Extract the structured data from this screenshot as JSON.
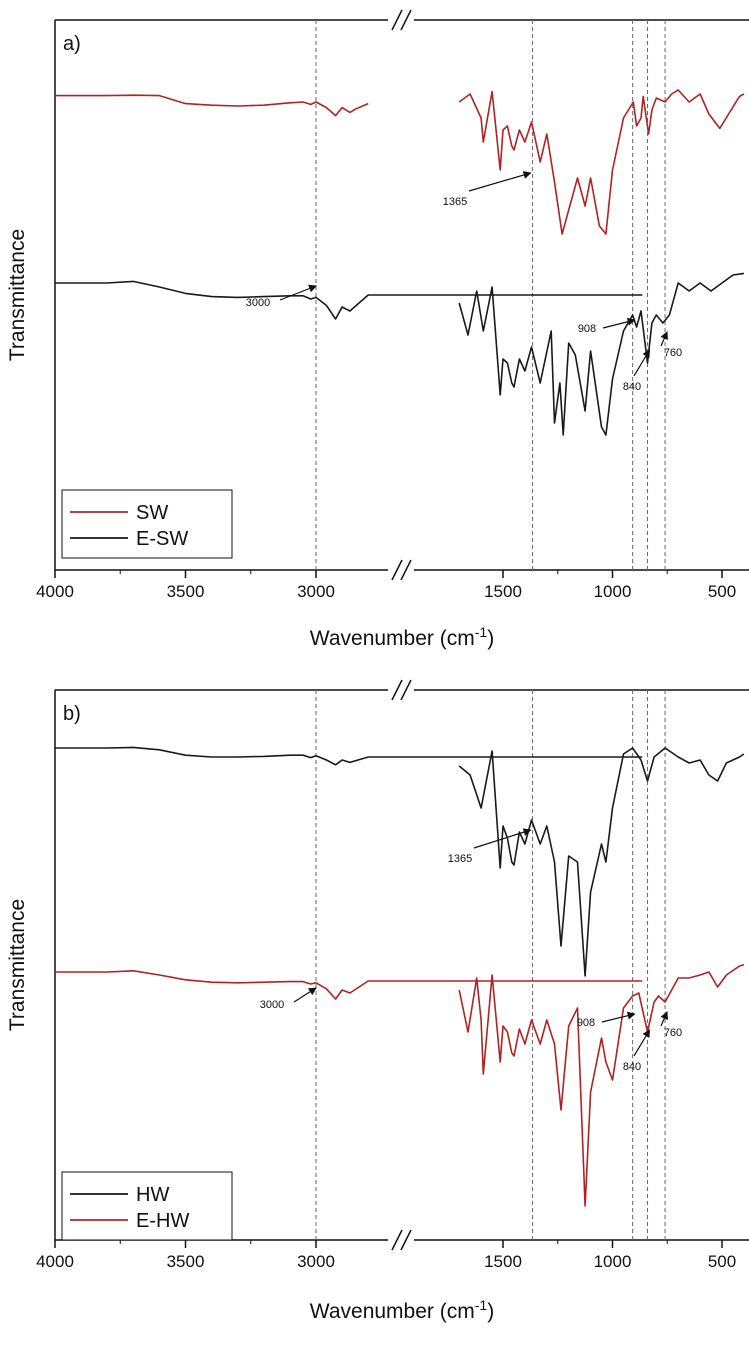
{
  "chart_data": [
    {
      "type": "line",
      "panel_label": "a)",
      "xlabel": "Wavenumber (cm",
      "xlabel_sup": "-1",
      "xlabel_close": ")",
      "ylabel": "Transmittance",
      "x_ticks": [
        "4000",
        "3500",
        "3000",
        "1500",
        "1000",
        "500"
      ],
      "x_break": [
        1750,
        1700
      ],
      "xlim": [
        4000,
        400
      ],
      "grid": false,
      "legend_position": "bottom-left",
      "reference_lines": [
        3000,
        1365,
        908,
        840,
        760
      ],
      "annotations": [
        {
          "label": "1365",
          "x": 1365
        },
        {
          "label": "3000",
          "x": 3000
        },
        {
          "label": "908",
          "x": 908
        },
        {
          "label": "840",
          "x": 840
        },
        {
          "label": "760",
          "x": 760
        }
      ],
      "series": [
        {
          "name": "SW",
          "color": "#b22222",
          "points": [
            [
              4000,
              0.07
            ],
            [
              3800,
              0.07
            ],
            [
              3700,
              0.065
            ],
            [
              3600,
              0.07
            ],
            [
              3550,
              0.12
            ],
            [
              3500,
              0.17
            ],
            [
              3400,
              0.19
            ],
            [
              3300,
              0.2
            ],
            [
              3200,
              0.19
            ],
            [
              3100,
              0.16
            ],
            [
              3050,
              0.15
            ],
            [
              3020,
              0.18
            ],
            [
              3000,
              0.15
            ],
            [
              2960,
              0.22
            ],
            [
              2925,
              0.32
            ],
            [
              2900,
              0.22
            ],
            [
              2870,
              0.28
            ],
            [
              2850,
              0.24
            ],
            [
              2800,
              0.17
            ],
            [
              1700,
              0.15
            ],
            [
              1650,
              0.05
            ],
            [
              1600,
              0.35
            ],
            [
              1590,
              0.65
            ],
            [
              1550,
              0.02
            ],
            [
              1513,
              1.0
            ],
            [
              1500,
              0.5
            ],
            [
              1480,
              0.45
            ],
            [
              1460,
              0.7
            ],
            [
              1450,
              0.75
            ],
            [
              1425,
              0.5
            ],
            [
              1400,
              0.65
            ],
            [
              1370,
              0.4
            ],
            [
              1330,
              0.9
            ],
            [
              1300,
              0.55
            ],
            [
              1265,
              1.15
            ],
            [
              1230,
              1.8
            ],
            [
              1205,
              1.55
            ],
            [
              1160,
              1.1
            ],
            [
              1125,
              1.45
            ],
            [
              1100,
              1.1
            ],
            [
              1060,
              1.7
            ],
            [
              1030,
              1.8
            ],
            [
              1000,
              1.0
            ],
            [
              950,
              0.35
            ],
            [
              905,
              0.15
            ],
            [
              890,
              0.45
            ],
            [
              870,
              0.35
            ],
            [
              860,
              0.08
            ],
            [
              835,
              0.55
            ],
            [
              820,
              0.25
            ],
            [
              800,
              0.1
            ],
            [
              760,
              0.15
            ],
            [
              730,
              0.05
            ],
            [
              700,
              0.0
            ],
            [
              650,
              0.15
            ],
            [
              600,
              0.05
            ],
            [
              560,
              0.3
            ],
            [
              510,
              0.48
            ],
            [
              470,
              0.3
            ],
            [
              420,
              0.08
            ],
            [
              400,
              0.05
            ]
          ]
        },
        {
          "name": "E-SW",
          "color": "#1a1a1a",
          "points": [
            [
              4000,
              0.0
            ],
            [
              3800,
              0.0
            ],
            [
              3700,
              -0.02
            ],
            [
              3600,
              0.05
            ],
            [
              3500,
              0.13
            ],
            [
              3400,
              0.17
            ],
            [
              3300,
              0.18
            ],
            [
              3200,
              0.17
            ],
            [
              3100,
              0.16
            ],
            [
              3050,
              0.16
            ],
            [
              3020,
              0.2
            ],
            [
              3000,
              0.18
            ],
            [
              2960,
              0.28
            ],
            [
              2925,
              0.45
            ],
            [
              2900,
              0.3
            ],
            [
              2870,
              0.35
            ],
            [
              2800,
              0.15
            ],
            [
              1750,
              0.15
            ],
            [
              1700,
              0.25
            ],
            [
              1660,
              0.65
            ],
            [
              1620,
              0.1
            ],
            [
              1590,
              0.6
            ],
            [
              1550,
              0.05
            ],
            [
              1513,
              1.4
            ],
            [
              1500,
              0.95
            ],
            [
              1480,
              1.0
            ],
            [
              1460,
              1.25
            ],
            [
              1450,
              1.3
            ],
            [
              1425,
              0.95
            ],
            [
              1400,
              1.1
            ],
            [
              1370,
              0.8
            ],
            [
              1330,
              1.25
            ],
            [
              1280,
              0.6
            ],
            [
              1265,
              1.75
            ],
            [
              1240,
              1.25
            ],
            [
              1225,
              1.9
            ],
            [
              1200,
              0.75
            ],
            [
              1170,
              0.9
            ],
            [
              1125,
              1.6
            ],
            [
              1100,
              0.85
            ],
            [
              1050,
              1.8
            ],
            [
              1030,
              1.9
            ],
            [
              1000,
              1.2
            ],
            [
              950,
              0.6
            ],
            [
              908,
              0.4
            ],
            [
              890,
              0.55
            ],
            [
              870,
              0.35
            ],
            [
              840,
              1.0
            ],
            [
              820,
              0.5
            ],
            [
              800,
              0.4
            ],
            [
              770,
              0.5
            ],
            [
              740,
              0.4
            ],
            [
              700,
              0.0
            ],
            [
              650,
              0.1
            ],
            [
              600,
              0.0
            ],
            [
              550,
              0.1
            ],
            [
              500,
              0.0
            ],
            [
              450,
              -0.1
            ],
            [
              400,
              -0.12
            ]
          ]
        }
      ]
    },
    {
      "type": "line",
      "panel_label": "b)",
      "xlabel": "Wavenumber (cm",
      "xlabel_sup": "-1",
      "xlabel_close": ")",
      "ylabel": "Transmittance",
      "x_ticks": [
        "4000",
        "3500",
        "3000",
        "1500",
        "1000",
        "500"
      ],
      "x_break": [
        1750,
        1700
      ],
      "xlim": [
        4000,
        400
      ],
      "grid": false,
      "legend_position": "bottom-left",
      "reference_lines": [
        3000,
        1365,
        908,
        840,
        760
      ],
      "annotations": [
        {
          "label": "1365",
          "x": 1365
        },
        {
          "label": "3000",
          "x": 3000
        },
        {
          "label": "908",
          "x": 908
        },
        {
          "label": "840",
          "x": 840
        },
        {
          "label": "760",
          "x": 760
        }
      ],
      "series": [
        {
          "name": "HW",
          "color": "#1a1a1a",
          "points": [
            [
              4000,
              0.0
            ],
            [
              3800,
              0.0
            ],
            [
              3700,
              -0.01
            ],
            [
              3600,
              0.03
            ],
            [
              3500,
              0.12
            ],
            [
              3400,
              0.15
            ],
            [
              3300,
              0.15
            ],
            [
              3200,
              0.14
            ],
            [
              3100,
              0.12
            ],
            [
              3050,
              0.12
            ],
            [
              3020,
              0.16
            ],
            [
              3000,
              0.13
            ],
            [
              2960,
              0.2
            ],
            [
              2925,
              0.28
            ],
            [
              2900,
              0.2
            ],
            [
              2870,
              0.24
            ],
            [
              2800,
              0.15
            ],
            [
              1750,
              0.15
            ],
            [
              1700,
              0.3
            ],
            [
              1650,
              0.45
            ],
            [
              1600,
              1.0
            ],
            [
              1550,
              0.05
            ],
            [
              1513,
              2.0
            ],
            [
              1500,
              1.3
            ],
            [
              1480,
              1.5
            ],
            [
              1460,
              1.9
            ],
            [
              1450,
              1.95
            ],
            [
              1425,
              1.4
            ],
            [
              1400,
              1.6
            ],
            [
              1370,
              1.2
            ],
            [
              1330,
              1.6
            ],
            [
              1300,
              1.3
            ],
            [
              1265,
              1.9
            ],
            [
              1235,
              3.3
            ],
            [
              1200,
              1.8
            ],
            [
              1160,
              1.9
            ],
            [
              1125,
              3.8
            ],
            [
              1100,
              2.4
            ],
            [
              1050,
              1.6
            ],
            [
              1030,
              1.9
            ],
            [
              1000,
              1.0
            ],
            [
              950,
              0.1
            ],
            [
              908,
              0.0
            ],
            [
              870,
              0.2
            ],
            [
              840,
              0.55
            ],
            [
              810,
              0.15
            ],
            [
              760,
              0.0
            ],
            [
              700,
              0.15
            ],
            [
              650,
              0.25
            ],
            [
              600,
              0.2
            ],
            [
              560,
              0.45
            ],
            [
              520,
              0.55
            ],
            [
              480,
              0.25
            ],
            [
              420,
              0.15
            ],
            [
              400,
              0.1
            ]
          ]
        },
        {
          "name": "E-HW",
          "color": "#b22222",
          "points": [
            [
              4000,
              0.0
            ],
            [
              3800,
              0.0
            ],
            [
              3700,
              -0.02
            ],
            [
              3600,
              0.05
            ],
            [
              3500,
              0.13
            ],
            [
              3400,
              0.17
            ],
            [
              3300,
              0.18
            ],
            [
              3200,
              0.17
            ],
            [
              3100,
              0.16
            ],
            [
              3050,
              0.16
            ],
            [
              3020,
              0.2
            ],
            [
              3000,
              0.18
            ],
            [
              2960,
              0.28
            ],
            [
              2925,
              0.45
            ],
            [
              2900,
              0.3
            ],
            [
              2870,
              0.35
            ],
            [
              2800,
              0.15
            ],
            [
              1750,
              0.15
            ],
            [
              1700,
              0.3
            ],
            [
              1660,
              1.0
            ],
            [
              1620,
              0.1
            ],
            [
              1600,
              0.8
            ],
            [
              1590,
              1.7
            ],
            [
              1550,
              0.05
            ],
            [
              1513,
              1.5
            ],
            [
              1500,
              0.9
            ],
            [
              1480,
              1.0
            ],
            [
              1460,
              1.35
            ],
            [
              1450,
              1.4
            ],
            [
              1425,
              0.95
            ],
            [
              1400,
              1.2
            ],
            [
              1370,
              0.8
            ],
            [
              1330,
              1.2
            ],
            [
              1300,
              0.8
            ],
            [
              1265,
              1.2
            ],
            [
              1235,
              2.3
            ],
            [
              1200,
              0.9
            ],
            [
              1160,
              0.6
            ],
            [
              1125,
              3.9
            ],
            [
              1100,
              2.0
            ],
            [
              1050,
              1.1
            ],
            [
              1030,
              1.5
            ],
            [
              1000,
              1.8
            ],
            [
              950,
              0.6
            ],
            [
              908,
              0.4
            ],
            [
              880,
              0.35
            ],
            [
              840,
              1.0
            ],
            [
              810,
              0.5
            ],
            [
              790,
              0.4
            ],
            [
              760,
              0.5
            ],
            [
              700,
              0.1
            ],
            [
              650,
              0.1
            ],
            [
              600,
              0.05
            ],
            [
              560,
              0.0
            ],
            [
              520,
              0.25
            ],
            [
              480,
              0.05
            ],
            [
              420,
              -0.1
            ],
            [
              400,
              -0.12
            ]
          ]
        }
      ]
    }
  ]
}
